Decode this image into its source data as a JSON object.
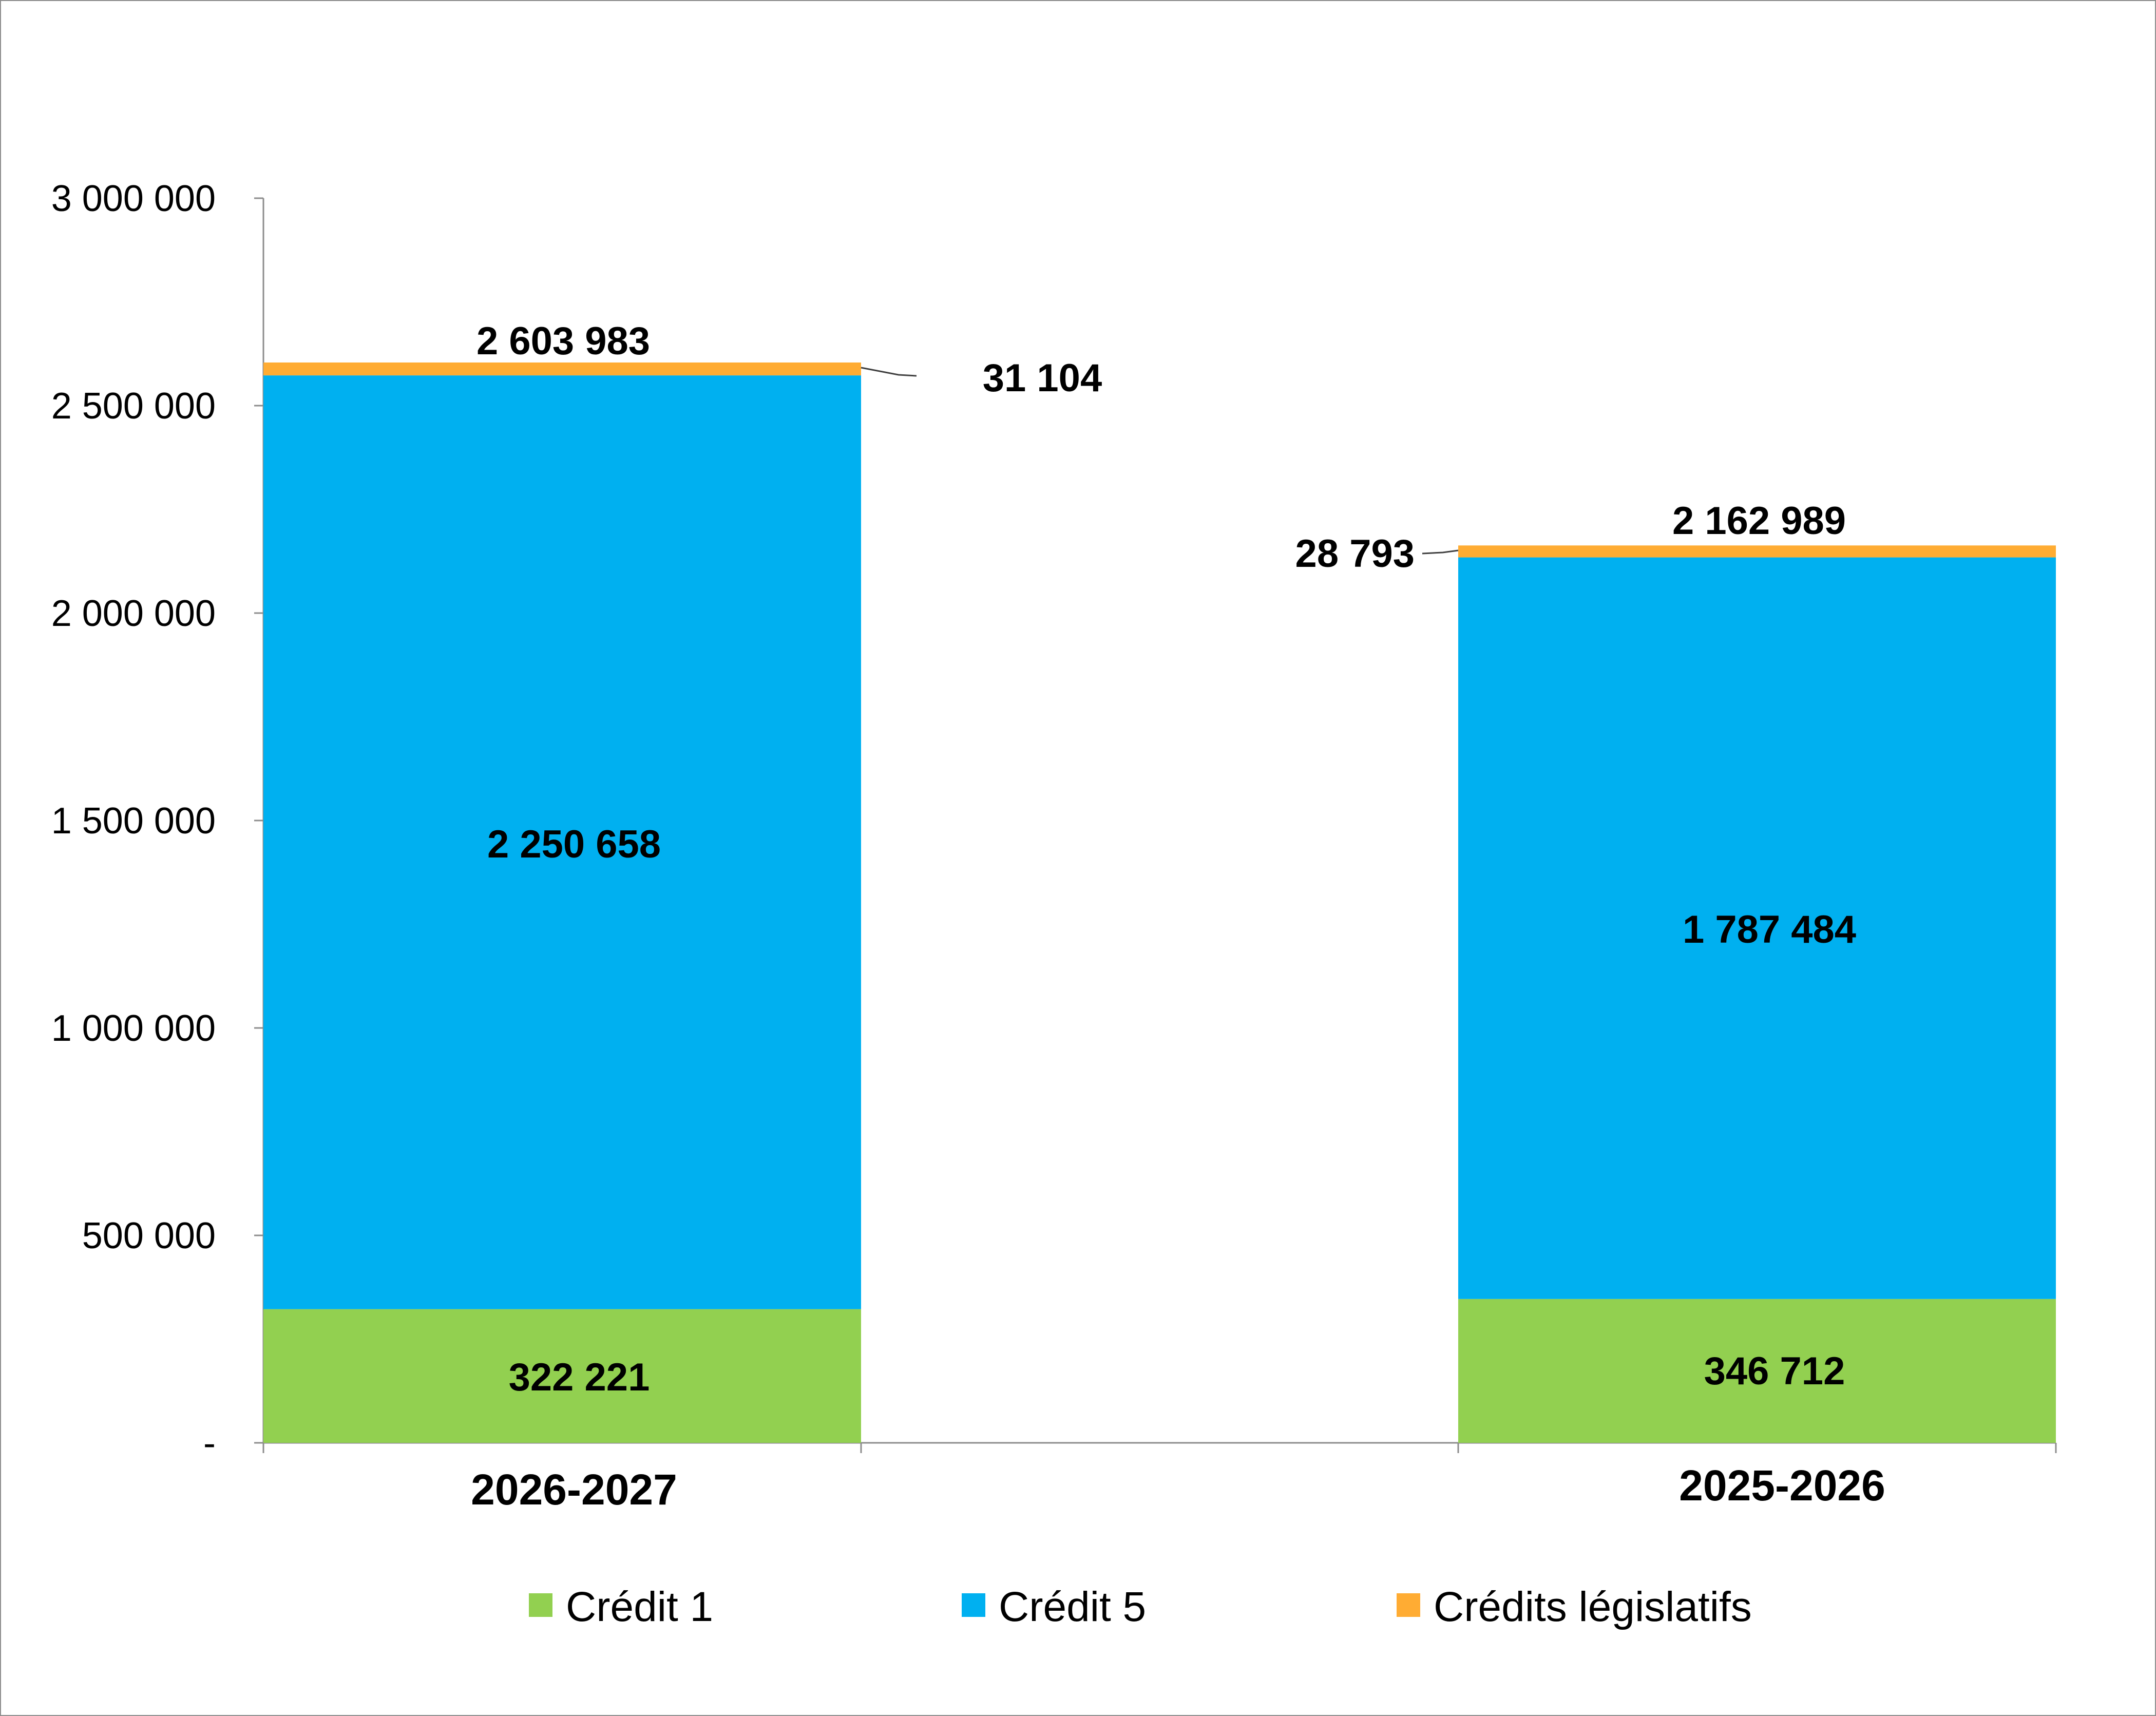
{
  "chart_data": {
    "type": "bar",
    "stacked": true,
    "categories": [
      "2026-2027",
      "2025-2026"
    ],
    "series": [
      {
        "name": "Crédit 1",
        "values": [
          322221,
          346712
        ],
        "color": "#92d050"
      },
      {
        "name": "Crédit 5",
        "values": [
          2250658,
          1787484
        ],
        "color": "#00b0f0"
      },
      {
        "name": "Crédits législatifs",
        "values": [
          31104,
          28793
        ],
        "color": "#ffac33"
      }
    ],
    "totals": [
      2603983,
      2162989
    ],
    "value_labels": {
      "series": [
        [
          "322 221",
          "346 712"
        ],
        [
          "2 250 658",
          "1 787 484"
        ],
        [
          "31 104",
          "28 793"
        ]
      ],
      "totals": [
        "2 603 983",
        "2 162 989"
      ]
    },
    "ylim": [
      0,
      3000000
    ],
    "yticks": [
      0,
      500000,
      1000000,
      1500000,
      2000000,
      2500000,
      3000000
    ],
    "ytick_labels": [
      "-",
      "500 000",
      "1 000 000",
      "1 500 000",
      "2 000 000",
      "2 500 000",
      "3 000 000"
    ],
    "title": "",
    "xlabel": "",
    "ylabel": "",
    "grid": false,
    "legend_position": "bottom"
  }
}
